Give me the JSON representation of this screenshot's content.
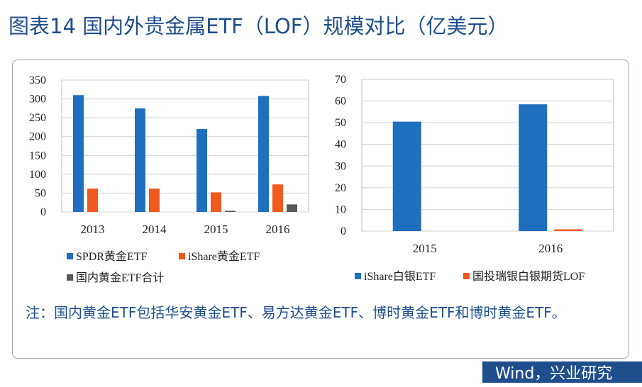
{
  "title": "图表14  国内外贵金属ETF（LOF）规模对比（亿美元）",
  "note": "注：国内黄金ETF包括华安黄金ETF、易方达黄金ETF、博时黄金ETF和博时黄金ETF。",
  "footer": "Wind，兴业研究",
  "chart_data": [
    {
      "type": "bar",
      "categories": [
        "2013",
        "2014",
        "2015",
        "2016"
      ],
      "series": [
        {
          "name": "SPDR黄金ETF",
          "color": "#1f6fbf",
          "values": [
            310,
            275,
            220,
            308
          ]
        },
        {
          "name": "iShare黄金ETF",
          "color": "#f05a1e",
          "values": [
            62,
            62,
            52,
            73
          ]
        },
        {
          "name": "国内黄金ETF合计",
          "color": "#595959",
          "values": [
            0,
            0,
            3,
            20
          ]
        }
      ],
      "yticks": [
        "0",
        "50",
        "100",
        "150",
        "200",
        "250",
        "300",
        "350"
      ],
      "ylim": [
        0,
        350
      ],
      "grid": true,
      "legend": "bottom"
    },
    {
      "type": "bar",
      "categories": [
        "2015",
        "2016"
      ],
      "series": [
        {
          "name": "iShare白银ETF",
          "color": "#1f6fbf",
          "values": [
            50.5,
            58.5
          ]
        },
        {
          "name": "国投瑞银白银期货LOF",
          "color": "#f05a1e",
          "values": [
            0,
            0.8
          ]
        }
      ],
      "yticks": [
        "0",
        "10",
        "20",
        "30",
        "40",
        "50",
        "60",
        "70"
      ],
      "ylim": [
        0,
        70
      ],
      "grid": true,
      "legend": "bottom"
    }
  ]
}
